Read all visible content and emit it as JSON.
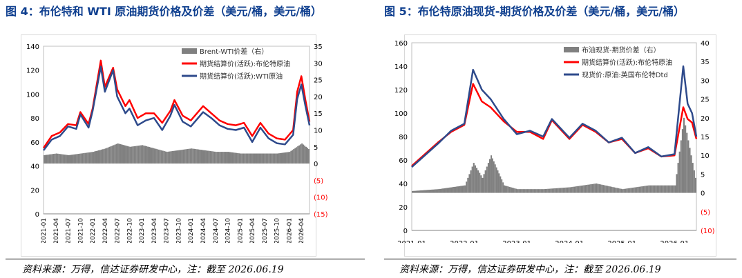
{
  "titles": {
    "left": "图 4：布伦特和 WTI 原油期货价格及价差（美元/桶，美元/桶）",
    "right": "图 5：布伦特原油现货-期货价格及价差（美元/桶，美元/桶）"
  },
  "sources": {
    "left": "资料来源：万得，信达证券研发中心，注：截至 2026.06.19",
    "right": "资料来源：万得，信达证券研发中心，注：截至 2026.06.19"
  },
  "colors": {
    "red": "#ff0000",
    "blue": "#2e4a8b",
    "gray": "#808080",
    "redtick": "#ff0000"
  },
  "chart_data": [
    {
      "type": "line",
      "x_start": "2021-01",
      "x_end": "2026-06",
      "x_ticks": [
        "2021-01",
        "2021-04",
        "2021-07",
        "2021-10",
        "2022-01",
        "2022-04",
        "2022-07",
        "2022-10",
        "2023-01",
        "2023-04",
        "2023-07",
        "2023-10",
        "2024-01",
        "2024-04",
        "2024-07",
        "2024-10",
        "2025-01",
        "2025-04",
        "2025-07",
        "2025-10",
        "2026-01",
        "2026-04"
      ],
      "ylim": [
        0,
        140
      ],
      "y_ticks": [
        "0",
        "20",
        "40",
        "60",
        "80",
        "100",
        "120",
        "140"
      ],
      "y2lim": [
        -15,
        35
      ],
      "y2_ticks": [
        "(15)",
        "(10)",
        "(5)",
        "0",
        "5",
        "10",
        "15",
        "20",
        "25",
        "30",
        "35"
      ],
      "legend": [
        "Brent-WTI价差（右）",
        "期货结算价(活跃):布伦特原油",
        "期货结算价(活跃):WTI原油"
      ],
      "series": [
        {
          "name": "期货结算价(活跃):布伦特原油",
          "axis": "left",
          "color": "#ff0000",
          "x": [
            "2021-01",
            "2021-03",
            "2021-05",
            "2021-07",
            "2021-09",
            "2021-10",
            "2021-12",
            "2022-01",
            "2022-03",
            "2022-04",
            "2022-06",
            "2022-07",
            "2022-09",
            "2022-10",
            "2022-12",
            "2023-02",
            "2023-04",
            "2023-06",
            "2023-08",
            "2023-09",
            "2023-11",
            "2024-01",
            "2024-04",
            "2024-06",
            "2024-08",
            "2024-10",
            "2024-12",
            "2025-02",
            "2025-04",
            "2025-06",
            "2025-08",
            "2025-10",
            "2025-12",
            "2026-02",
            "2026-03",
            "2026-04",
            "2026-05",
            "2026-06"
          ],
          "values": [
            55,
            65,
            68,
            75,
            74,
            85,
            75,
            88,
            128,
            106,
            122,
            104,
            90,
            95,
            80,
            84,
            84,
            76,
            86,
            95,
            82,
            78,
            90,
            84,
            78,
            75,
            74,
            76,
            65,
            76,
            67,
            63,
            62,
            70,
            102,
            115,
            95,
            77
          ]
        },
        {
          "name": "期货结算价(活跃):WTI原油",
          "axis": "left",
          "color": "#2e4a8b",
          "x": [
            "2021-01",
            "2021-03",
            "2021-05",
            "2021-07",
            "2021-09",
            "2021-10",
            "2021-12",
            "2022-01",
            "2022-03",
            "2022-04",
            "2022-06",
            "2022-07",
            "2022-09",
            "2022-10",
            "2022-12",
            "2023-02",
            "2023-04",
            "2023-06",
            "2023-08",
            "2023-09",
            "2023-11",
            "2024-01",
            "2024-04",
            "2024-06",
            "2024-08",
            "2024-10",
            "2024-12",
            "2025-02",
            "2025-04",
            "2025-06",
            "2025-08",
            "2025-10",
            "2025-12",
            "2026-02",
            "2026-03",
            "2026-04",
            "2026-05",
            "2026-06"
          ],
          "values": [
            53,
            62,
            65,
            73,
            71,
            83,
            72,
            86,
            123,
            102,
            120,
            98,
            84,
            88,
            74,
            78,
            80,
            70,
            82,
            91,
            77,
            73,
            85,
            80,
            74,
            71,
            70,
            72,
            60,
            72,
            63,
            59,
            58,
            66,
            96,
            108,
            90,
            74
          ]
        },
        {
          "name": "Brent-WTI价差（右）",
          "axis": "right",
          "color": "#808080",
          "kind": "bar",
          "x": [
            "2021-01",
            "2021-04",
            "2021-07",
            "2021-10",
            "2022-01",
            "2022-04",
            "2022-07",
            "2022-10",
            "2023-01",
            "2023-04",
            "2023-07",
            "2023-10",
            "2024-01",
            "2024-04",
            "2024-07",
            "2024-10",
            "2025-01",
            "2025-04",
            "2025-07",
            "2025-10",
            "2026-01",
            "2026-04",
            "2026-06"
          ],
          "values": [
            2.5,
            3,
            2.5,
            3,
            3.5,
            4.5,
            6,
            5,
            5.5,
            4.5,
            3.5,
            4,
            4.5,
            4,
            3.5,
            3.5,
            3,
            3,
            3,
            3,
            3.5,
            6,
            4
          ]
        }
      ]
    },
    {
      "type": "line",
      "x_start": "2021-01",
      "x_end": "2026-06",
      "x_ticks": [
        "2021-01",
        "2022-01",
        "2023-01",
        "2024-01",
        "2025-01",
        "2026-01"
      ],
      "ylim": [
        0,
        160
      ],
      "y_ticks": [
        "0",
        "20",
        "40",
        "60",
        "80",
        "100",
        "120",
        "140",
        "160"
      ],
      "y2lim": [
        -10,
        40
      ],
      "y2_ticks": [
        "(10)",
        "(5)",
        "0",
        "5",
        "10",
        "15",
        "20",
        "25",
        "30",
        "35",
        "40"
      ],
      "legend": [
        "布油现货-期货价差（右）",
        "期货结算价(活跃):布伦特原油",
        "现货价:原油:英国布伦特Dtd"
      ],
      "series": [
        {
          "name": "期货结算价(活跃):布伦特原油",
          "axis": "left",
          "color": "#ff0000",
          "x": [
            "2021-01",
            "2021-04",
            "2021-07",
            "2021-10",
            "2022-01",
            "2022-03",
            "2022-05",
            "2022-07",
            "2022-10",
            "2023-01",
            "2023-04",
            "2023-07",
            "2023-09",
            "2024-01",
            "2024-04",
            "2024-07",
            "2024-10",
            "2025-01",
            "2025-04",
            "2025-07",
            "2025-10",
            "2026-01",
            "2026-03",
            "2026-04",
            "2026-05",
            "2026-06"
          ],
          "values": [
            55,
            65,
            75,
            84,
            90,
            125,
            110,
            105,
            93,
            84,
            84,
            78,
            94,
            78,
            90,
            84,
            75,
            78,
            66,
            70,
            63,
            64,
            105,
            95,
            92,
            78
          ]
        },
        {
          "name": "现货价:原油:英国布伦特Dtd",
          "axis": "left",
          "color": "#2e4a8b",
          "x": [
            "2021-01",
            "2021-04",
            "2021-07",
            "2021-10",
            "2022-01",
            "2022-03",
            "2022-05",
            "2022-07",
            "2022-10",
            "2023-01",
            "2023-04",
            "2023-07",
            "2023-09",
            "2024-01",
            "2024-04",
            "2024-07",
            "2024-10",
            "2025-01",
            "2025-04",
            "2025-07",
            "2025-10",
            "2026-01",
            "2026-03",
            "2026-04",
            "2026-05",
            "2026-06"
          ],
          "values": [
            54,
            64,
            74,
            85,
            91,
            137,
            120,
            112,
            95,
            82,
            85,
            80,
            95,
            79,
            91,
            85,
            75,
            79,
            66,
            71,
            63,
            65,
            140,
            108,
            100,
            80
          ]
        },
        {
          "name": "布油现货-期货价差（右）",
          "axis": "right",
          "color": "#808080",
          "kind": "bar",
          "x": [
            "2021-01",
            "2021-07",
            "2022-01",
            "2022-03",
            "2022-05",
            "2022-07",
            "2022-10",
            "2023-01",
            "2023-07",
            "2024-01",
            "2024-07",
            "2025-01",
            "2025-07",
            "2026-01",
            "2026-03",
            "2026-05",
            "2026-06"
          ],
          "values": [
            0.5,
            1,
            2,
            8,
            4,
            10,
            2,
            1,
            1,
            1.5,
            2.5,
            1,
            2,
            2,
            20,
            8,
            2
          ]
        }
      ]
    }
  ]
}
